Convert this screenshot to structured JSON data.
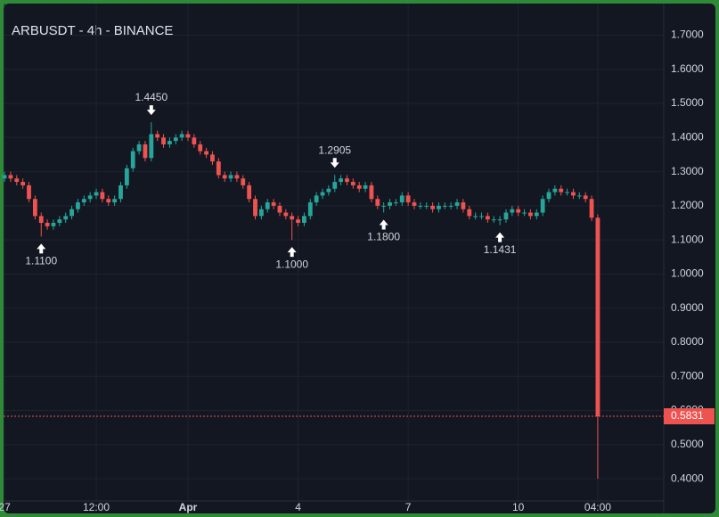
{
  "chart_data": {
    "type": "candlestick",
    "title": "ARBUSDT - 4h - BINANCE",
    "up_color": "#26a69a",
    "down_color": "#ef5350",
    "grid": true,
    "xlim": [
      -0.3,
      107.5
    ],
    "ylim": [
      0.335,
      1.79
    ],
    "yticks": [
      {
        "value": 0.4,
        "label": "0.4000"
      },
      {
        "value": 0.5,
        "label": "0.5000"
      },
      {
        "value": 0.6,
        "label": "0.6000"
      },
      {
        "value": 0.7,
        "label": "0.7000"
      },
      {
        "value": 0.8,
        "label": "0.8000"
      },
      {
        "value": 0.9,
        "label": "0.9000"
      },
      {
        "value": 1.0,
        "label": "1.0000"
      },
      {
        "value": 1.1,
        "label": "1.1000"
      },
      {
        "value": 1.2,
        "label": "1.2000"
      },
      {
        "value": 1.3,
        "label": "1.3000"
      },
      {
        "value": 1.4,
        "label": "1.4000"
      },
      {
        "value": 1.5,
        "label": "1.5000"
      },
      {
        "value": 1.6,
        "label": "1.6000"
      },
      {
        "value": 1.7,
        "label": "1.7000"
      }
    ],
    "xticks": [
      {
        "value": 0,
        "label": "27"
      },
      {
        "value": 15,
        "label": "12:00"
      },
      {
        "value": 30,
        "label": "Apr"
      },
      {
        "value": 48,
        "label": "4"
      },
      {
        "value": 66,
        "label": "7"
      },
      {
        "value": 84,
        "label": "10"
      },
      {
        "value": 97,
        "label": "04:00"
      }
    ],
    "open": [
      1.28,
      1.29,
      1.28,
      1.27,
      1.26,
      1.22,
      1.17,
      1.15,
      1.14,
      1.15,
      1.16,
      1.17,
      1.19,
      1.21,
      1.22,
      1.23,
      1.24,
      1.22,
      1.21,
      1.22,
      1.26,
      1.31,
      1.36,
      1.38,
      1.34,
      1.41,
      1.4,
      1.38,
      1.39,
      1.4,
      1.41,
      1.4,
      1.38,
      1.36,
      1.35,
      1.33,
      1.29,
      1.28,
      1.29,
      1.28,
      1.26,
      1.22,
      1.17,
      1.19,
      1.21,
      1.2,
      1.18,
      1.17,
      1.16,
      1.15,
      1.17,
      1.21,
      1.23,
      1.24,
      1.25,
      1.27,
      1.28,
      1.27,
      1.26,
      1.25,
      1.26,
      1.22,
      1.2,
      1.2,
      1.21,
      1.21,
      1.23,
      1.21,
      1.2,
      1.2,
      1.2,
      1.19,
      1.2,
      1.2,
      1.2,
      1.21,
      1.19,
      1.17,
      1.17,
      1.17,
      1.16,
      1.16,
      1.16,
      1.18,
      1.19,
      1.18,
      1.18,
      1.17,
      1.18,
      1.22,
      1.24,
      1.25,
      1.24,
      1.24,
      1.23,
      1.23,
      1.22,
      1.165
    ],
    "high": [
      1.3,
      1.3,
      1.29,
      1.28,
      1.27,
      1.23,
      1.18,
      1.16,
      1.16,
      1.17,
      1.18,
      1.2,
      1.22,
      1.23,
      1.24,
      1.25,
      1.25,
      1.23,
      1.23,
      1.27,
      1.32,
      1.37,
      1.39,
      1.39,
      1.445,
      1.42,
      1.41,
      1.4,
      1.41,
      1.42,
      1.42,
      1.41,
      1.39,
      1.37,
      1.36,
      1.34,
      1.3,
      1.3,
      1.3,
      1.29,
      1.27,
      1.23,
      1.2,
      1.22,
      1.22,
      1.21,
      1.19,
      1.18,
      1.17,
      1.18,
      1.22,
      1.24,
      1.25,
      1.26,
      1.2905,
      1.29,
      1.29,
      1.28,
      1.27,
      1.27,
      1.27,
      1.23,
      1.21,
      1.22,
      1.22,
      1.24,
      1.24,
      1.22,
      1.21,
      1.21,
      1.21,
      1.21,
      1.21,
      1.21,
      1.22,
      1.22,
      1.2,
      1.18,
      1.18,
      1.18,
      1.17,
      1.17,
      1.19,
      1.2,
      1.2,
      1.19,
      1.19,
      1.19,
      1.23,
      1.25,
      1.26,
      1.26,
      1.25,
      1.25,
      1.24,
      1.24,
      1.23,
      1.175
    ],
    "low": [
      1.27,
      1.27,
      1.26,
      1.25,
      1.21,
      1.16,
      1.11,
      1.13,
      1.13,
      1.14,
      1.15,
      1.16,
      1.18,
      1.2,
      1.21,
      1.22,
      1.21,
      1.2,
      1.2,
      1.21,
      1.25,
      1.3,
      1.35,
      1.33,
      1.33,
      1.39,
      1.37,
      1.37,
      1.38,
      1.39,
      1.39,
      1.37,
      1.35,
      1.34,
      1.32,
      1.28,
      1.27,
      1.27,
      1.27,
      1.25,
      1.21,
      1.16,
      1.16,
      1.18,
      1.19,
      1.17,
      1.16,
      1.1,
      1.14,
      1.14,
      1.16,
      1.2,
      1.22,
      1.23,
      1.24,
      1.26,
      1.26,
      1.25,
      1.24,
      1.24,
      1.21,
      1.19,
      1.18,
      1.19,
      1.2,
      1.2,
      1.2,
      1.19,
      1.19,
      1.19,
      1.18,
      1.18,
      1.19,
      1.19,
      1.19,
      1.18,
      1.16,
      1.16,
      1.16,
      1.15,
      1.15,
      1.1431,
      1.15,
      1.17,
      1.17,
      1.17,
      1.16,
      1.16,
      1.17,
      1.21,
      1.23,
      1.23,
      1.23,
      1.22,
      1.22,
      1.21,
      1.155,
      0.4
    ],
    "close": [
      1.29,
      1.28,
      1.27,
      1.26,
      1.22,
      1.17,
      1.15,
      1.14,
      1.15,
      1.16,
      1.17,
      1.19,
      1.21,
      1.22,
      1.23,
      1.24,
      1.22,
      1.21,
      1.22,
      1.26,
      1.31,
      1.36,
      1.38,
      1.34,
      1.41,
      1.4,
      1.38,
      1.39,
      1.4,
      1.41,
      1.4,
      1.38,
      1.36,
      1.35,
      1.33,
      1.29,
      1.28,
      1.29,
      1.28,
      1.26,
      1.22,
      1.17,
      1.19,
      1.21,
      1.2,
      1.18,
      1.17,
      1.16,
      1.15,
      1.17,
      1.21,
      1.23,
      1.24,
      1.25,
      1.27,
      1.28,
      1.27,
      1.26,
      1.25,
      1.26,
      1.22,
      1.2,
      1.2,
      1.21,
      1.21,
      1.23,
      1.21,
      1.2,
      1.2,
      1.2,
      1.19,
      1.2,
      1.2,
      1.2,
      1.21,
      1.19,
      1.17,
      1.17,
      1.17,
      1.16,
      1.16,
      1.16,
      1.18,
      1.19,
      1.18,
      1.18,
      1.17,
      1.18,
      1.22,
      1.24,
      1.25,
      1.24,
      1.24,
      1.23,
      1.23,
      1.22,
      1.165,
      0.5831
    ],
    "annotations": [
      {
        "x": 6,
        "value": 1.11,
        "label": "1.1100",
        "position": "below"
      },
      {
        "x": 24,
        "value": 1.445,
        "label": "1.4450",
        "position": "above"
      },
      {
        "x": 47,
        "value": 1.1,
        "label": "1.1000",
        "position": "below"
      },
      {
        "x": 54,
        "value": 1.2905,
        "label": "1.2905",
        "position": "above"
      },
      {
        "x": 62,
        "value": 1.18,
        "label": "1.1800",
        "position": "below"
      },
      {
        "x": 81,
        "value": 1.1431,
        "label": "1.1431",
        "position": "below"
      }
    ],
    "last_price": 0.5831
  }
}
